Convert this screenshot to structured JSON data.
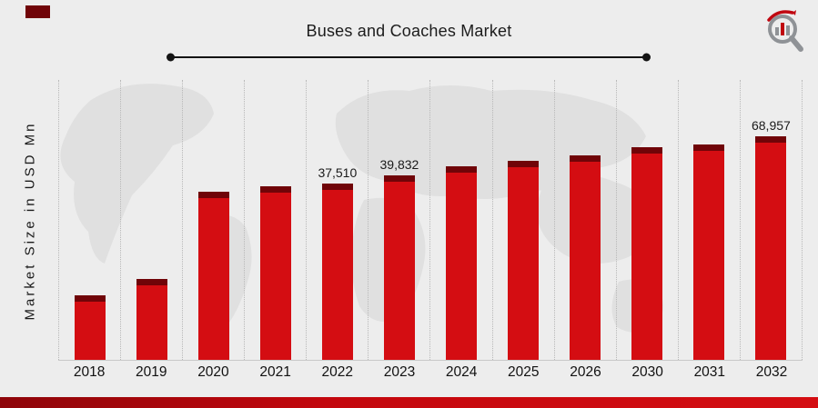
{
  "header": {
    "title": "Buses and Coaches Market"
  },
  "y_axis": {
    "label": "Market Size in USD Mn"
  },
  "icons": {
    "logo": "magnifier-bar-chart-logo",
    "timeline_dots": "endpoint-dots"
  },
  "colors": {
    "background": "#ededed",
    "bar": "#d40d12",
    "bar_cap": "#700408",
    "footer_band": "#c3070d",
    "title_text": "#1c1c1c",
    "gridline": "#b8b8b8"
  },
  "chart_data": {
    "type": "bar",
    "title": "Buses and Coaches Market",
    "xlabel": "",
    "ylabel": "Market Size in USD Mn",
    "grid": "vertical-dotted",
    "legend": null,
    "categories": [
      "2018",
      "2019",
      "2020",
      "2021",
      "2022",
      "2023",
      "2024",
      "2025",
      "2026",
      "2030",
      "2031",
      "2032"
    ],
    "bars": [
      {
        "year": "2018",
        "value_label": "",
        "height_pct": 23
      },
      {
        "year": "2019",
        "value_label": "",
        "height_pct": 29
      },
      {
        "year": "2020",
        "value_label": "",
        "height_pct": 60
      },
      {
        "year": "2021",
        "value_label": "",
        "height_pct": 62
      },
      {
        "year": "2022",
        "value_label": "37,510",
        "height_pct": 63
      },
      {
        "year": "2023",
        "value_label": "39,832",
        "height_pct": 66
      },
      {
        "year": "2024",
        "value_label": "",
        "height_pct": 69
      },
      {
        "year": "2025",
        "value_label": "",
        "height_pct": 71
      },
      {
        "year": "2026",
        "value_label": "",
        "height_pct": 73
      },
      {
        "year": "2030",
        "value_label": "",
        "height_pct": 76
      },
      {
        "year": "2031",
        "value_label": "",
        "height_pct": 77
      },
      {
        "year": "2032",
        "value_label": "68,957",
        "height_pct": 80
      }
    ],
    "labeled_values": [
      {
        "year": "2022",
        "value": 37510
      },
      {
        "year": "2023",
        "value": 39832
      },
      {
        "year": "2032",
        "value": 68957
      }
    ]
  }
}
